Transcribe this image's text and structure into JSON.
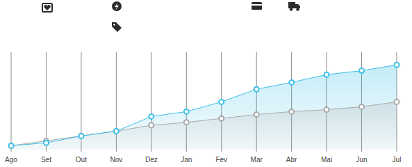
{
  "chart_data": {
    "type": "line",
    "categories": [
      "Ago",
      "Set",
      "Out",
      "Nov",
      "Dez",
      "Jan",
      "Fev",
      "Mar",
      "Abr",
      "Mai",
      "Jun",
      "Jul"
    ],
    "series": [
      {
        "color": "#3cc0e6",
        "values": [
          4,
          7,
          14,
          19,
          34,
          39,
          49,
          62,
          69,
          77,
          81,
          87
        ]
      },
      {
        "color": "#a9a9a9",
        "values": [
          4,
          9,
          14,
          19,
          25,
          28,
          32,
          36,
          39,
          41,
          44,
          49
        ]
      }
    ],
    "ylim": [
      0,
      100
    ],
    "grid": true,
    "marker": "circle",
    "tick_labels": "x"
  }
}
